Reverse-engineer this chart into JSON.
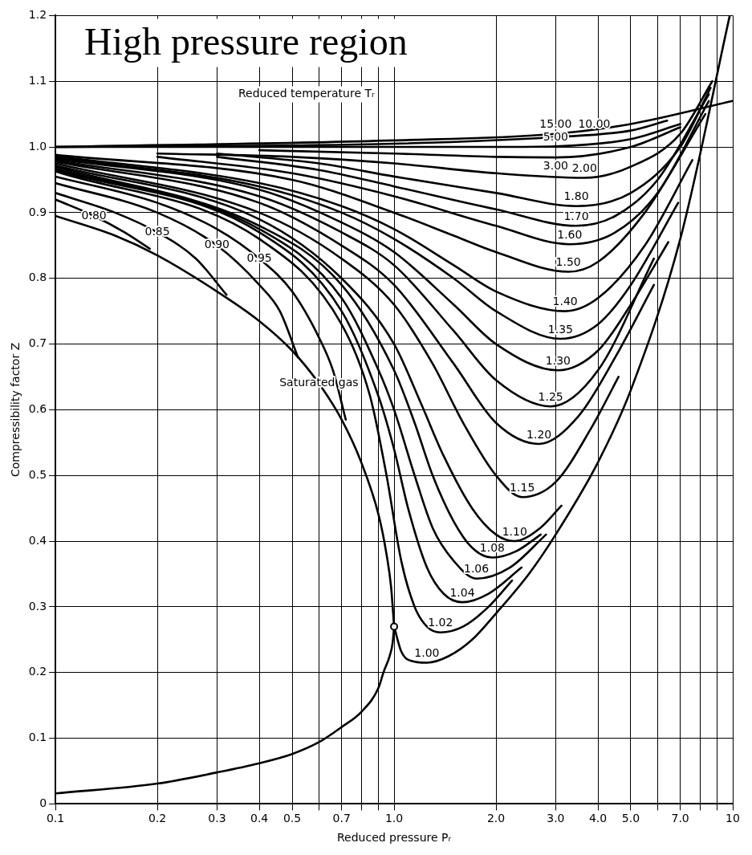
{
  "chart_data": {
    "type": "line",
    "title": "High pressure region",
    "xlabel": "Reduced pressure Pᵣ",
    "ylabel": "Compressibility factor Z",
    "annotations": [
      "Reduced temperature Tᵣ"
    ],
    "xlim": [
      0.1,
      10
    ],
    "ylim": [
      0,
      1.2
    ],
    "log": "x",
    "grid": true,
    "legend": false,
    "xticks": [
      0.1,
      0.2,
      0.3,
      0.4,
      0.5,
      {
        "value": 0.6,
        "label": null
      },
      0.7,
      {
        "value": 0.8,
        "label": null
      },
      {
        "value": 0.9,
        "label": null
      },
      {
        "value": 1,
        "label": "1.0"
      },
      {
        "value": 2,
        "label": "2.0"
      },
      {
        "value": 3,
        "label": "3.0"
      },
      {
        "value": 4,
        "label": "4.0"
      },
      {
        "value": 5,
        "label": "5.0"
      },
      {
        "value": 6,
        "label": null
      },
      {
        "value": 7,
        "label": "7.0"
      },
      {
        "value": 8,
        "label": null
      },
      {
        "value": 9,
        "label": null
      },
      10
    ],
    "yticks": [
      0,
      0.1,
      0.2,
      0.3,
      0.4,
      0.5,
      0.6,
      0.7,
      0.8,
      0.9,
      {
        "value": 1,
        "label": "1.0"
      },
      1.1,
      1.2
    ],
    "series": [
      {
        "name": "Saturated gas",
        "color": "#000000",
        "x": [
          0.1,
          0.15,
          0.2,
          0.3,
          0.4,
          0.5,
          0.6,
          0.7,
          0.8,
          0.9,
          0.95,
          0.98,
          1.0
        ],
        "values": [
          0.895,
          0.865,
          0.835,
          0.78,
          0.735,
          0.69,
          0.64,
          0.585,
          0.52,
          0.44,
          0.38,
          0.33,
          0.27
        ]
      },
      {
        "color": "#000000",
        "x": [
          0.1,
          0.2,
          0.3,
          0.4,
          0.5,
          0.6,
          0.7,
          0.8,
          0.9,
          0.93,
          0.97,
          0.99,
          1.0
        ],
        "values": [
          0.016,
          0.031,
          0.048,
          0.062,
          0.076,
          0.094,
          0.117,
          0.14,
          0.177,
          0.2,
          0.225,
          0.245,
          0.27
        ]
      },
      {
        "name": "0.80",
        "color": "#000000",
        "x": [
          0.1,
          0.13,
          0.16,
          0.19
        ],
        "values": [
          0.92,
          0.895,
          0.87,
          0.845
        ]
      },
      {
        "name": "0.85",
        "color": "#000000",
        "x": [
          0.1,
          0.15,
          0.2,
          0.26,
          0.32
        ],
        "values": [
          0.93,
          0.9,
          0.87,
          0.83,
          0.775
        ]
      },
      {
        "name": "0.90",
        "color": "#000000",
        "x": [
          0.1,
          0.2,
          0.3,
          0.4,
          0.46,
          0.52
        ],
        "values": [
          0.945,
          0.9,
          0.85,
          0.79,
          0.75,
          0.68
        ]
      },
      {
        "name": "0.95",
        "color": "#000000",
        "x": [
          0.1,
          0.2,
          0.3,
          0.4,
          0.5,
          0.6,
          0.66,
          0.72
        ],
        "values": [
          0.955,
          0.915,
          0.875,
          0.83,
          0.78,
          0.71,
          0.66,
          0.585
        ]
      },
      {
        "name": "1.00",
        "color": "#000000",
        "x": [
          1.0,
          1.05,
          1.12,
          1.25,
          1.45,
          1.7,
          2,
          2.5,
          3,
          4,
          5,
          7,
          9.8
        ],
        "values": [
          0.27,
          0.232,
          0.218,
          0.215,
          0.225,
          0.25,
          0.29,
          0.35,
          0.41,
          0.52,
          0.63,
          0.86,
          1.2
        ]
      },
      {
        "name": "1.02",
        "color": "#000000",
        "x": [
          0.1,
          0.4,
          0.7,
          0.85,
          0.95,
          1.05,
          1.15,
          1.25,
          1.37,
          1.6,
          1.9,
          2.23
        ],
        "values": [
          0.963,
          0.86,
          0.73,
          0.62,
          0.5,
          0.37,
          0.3,
          0.27,
          0.261,
          0.27,
          0.3,
          0.34
        ]
      },
      {
        "name": "1.04",
        "color": "#000000",
        "x": [
          0.1,
          0.4,
          0.7,
          0.9,
          1.0,
          1.1,
          1.25,
          1.4,
          1.59,
          1.9,
          2.38
        ],
        "values": [
          0.965,
          0.87,
          0.75,
          0.62,
          0.54,
          0.45,
          0.36,
          0.32,
          0.307,
          0.32,
          0.36
        ]
      },
      {
        "name": "1.06",
        "color": "#000000",
        "x": [
          0.1,
          0.4,
          0.7,
          0.9,
          1.0,
          1.15,
          1.3,
          1.5,
          1.75,
          2.2,
          2.81
        ],
        "values": [
          0.967,
          0.875,
          0.77,
          0.66,
          0.6,
          0.5,
          0.42,
          0.37,
          0.343,
          0.36,
          0.41
        ]
      },
      {
        "name": "1.08",
        "color": "#000000",
        "x": [
          0.1,
          0.4,
          0.7,
          1.0,
          1.15,
          1.3,
          1.5,
          1.7,
          1.95,
          2.3,
          2.71
        ],
        "values": [
          0.97,
          0.88,
          0.79,
          0.66,
          0.58,
          0.5,
          0.43,
          0.39,
          0.375,
          0.385,
          0.41
        ]
      },
      {
        "name": "1.10",
        "color": "#000000",
        "x": [
          0.1,
          0.4,
          0.7,
          1.0,
          1.2,
          1.4,
          1.7,
          2.0,
          2.27,
          2.7,
          3.12
        ],
        "values": [
          0.972,
          0.89,
          0.8,
          0.7,
          0.61,
          0.53,
          0.45,
          0.41,
          0.4,
          0.42,
          0.454
        ]
      },
      {
        "name": "1.15",
        "color": "#000000",
        "x": [
          0.1,
          0.4,
          0.7,
          1.0,
          1.3,
          1.6,
          2.0,
          2.39,
          3.0,
          3.8,
          4.6
        ],
        "values": [
          0.975,
          0.9,
          0.83,
          0.76,
          0.67,
          0.58,
          0.5,
          0.467,
          0.49,
          0.57,
          0.65
        ]
      },
      {
        "name": "1.20",
        "color": "#000000",
        "x": [
          0.1,
          0.4,
          0.7,
          1.0,
          1.5,
          2.0,
          2.68,
          3.5,
          4.5,
          5.85
        ],
        "values": [
          0.978,
          0.915,
          0.85,
          0.79,
          0.67,
          0.58,
          0.548,
          0.59,
          0.68,
          0.79
        ]
      },
      {
        "name": "1.25",
        "color": "#000000",
        "x": [
          0.1,
          0.4,
          0.7,
          1.0,
          1.5,
          2.0,
          2.9,
          4.0,
          5.85
        ],
        "values": [
          0.98,
          0.925,
          0.87,
          0.82,
          0.72,
          0.645,
          0.605,
          0.66,
          0.83
        ]
      },
      {
        "name": "1.30",
        "color": "#000000",
        "x": [
          0.1,
          0.4,
          0.7,
          1.0,
          1.5,
          2.0,
          3.05,
          4.0,
          5.0,
          6.45
        ],
        "values": [
          0.982,
          0.935,
          0.885,
          0.84,
          0.76,
          0.7,
          0.66,
          0.69,
          0.76,
          0.855
        ]
      },
      {
        "name": "1.35",
        "color": "#000000",
        "x": [
          0.1,
          0.4,
          0.7,
          1.0,
          1.5,
          2.0,
          3.1,
          4.0,
          5.0,
          6.9
        ],
        "values": [
          0.984,
          0.94,
          0.9,
          0.86,
          0.8,
          0.75,
          0.708,
          0.73,
          0.79,
          0.915
        ]
      },
      {
        "name": "1.40",
        "color": "#000000",
        "x": [
          0.1,
          0.4,
          0.7,
          1.0,
          1.5,
          2.0,
          3.2,
          4.0,
          5.5,
          7.6
        ],
        "values": [
          0.986,
          0.945,
          0.91,
          0.875,
          0.82,
          0.78,
          0.75,
          0.77,
          0.85,
          0.98
        ]
      },
      {
        "name": "1.50",
        "color": "#000000",
        "x": [
          0.1,
          0.5,
          1.0,
          1.5,
          2.0,
          3.27,
          4.0,
          5.5,
          8.3
        ],
        "values": [
          0.988,
          0.95,
          0.9,
          0.865,
          0.84,
          0.81,
          0.825,
          0.9,
          1.05
        ]
      },
      {
        "name": "1.60",
        "color": "#000000",
        "x": [
          0.2,
          0.5,
          1.0,
          2.0,
          3.3,
          4.5,
          6.0,
          8.5
        ],
        "values": [
          0.985,
          0.96,
          0.925,
          0.88,
          0.852,
          0.87,
          0.93,
          1.07
        ]
      },
      {
        "name": "1.70",
        "color": "#000000",
        "x": [
          0.3,
          0.6,
          1.0,
          2.0,
          3.45,
          4.5,
          6.0,
          8.5
        ],
        "values": [
          0.985,
          0.965,
          0.94,
          0.905,
          0.88,
          0.895,
          0.95,
          1.08
        ]
      },
      {
        "name": "1.80",
        "color": "#000000",
        "x": [
          0.3,
          0.6,
          1.0,
          2.0,
          3.45,
          5.0,
          7.0,
          8.6
        ],
        "values": [
          0.99,
          0.975,
          0.955,
          0.93,
          0.91,
          0.93,
          1.0,
          1.09
        ]
      },
      {
        "name": "2.00",
        "color": "#000000",
        "x": [
          0.2,
          0.5,
          1.0,
          2.0,
          3.65,
          5.0,
          7.0,
          8.7
        ],
        "values": [
          0.99,
          0.985,
          0.975,
          0.96,
          0.953,
          0.97,
          1.02,
          1.1
        ]
      },
      {
        "name": "3.00",
        "color": "#000000",
        "x": [
          0.4,
          1.0,
          2.0,
          3.0,
          5.0,
          7.0
        ],
        "values": [
          0.995,
          0.99,
          0.985,
          0.984,
          1.0,
          1.03
        ]
      },
      {
        "name": "5.00",
        "color": "#000000",
        "x": [
          0.1,
          1.0,
          2.0,
          3.0,
          5.0,
          7.0
        ],
        "values": [
          1.0,
          1.0,
          1.0,
          1.001,
          1.012,
          1.035
        ]
      },
      {
        "name": "10.00",
        "color": "#000000",
        "x": [
          0.1,
          1.0,
          3.0,
          5.0,
          6.4
        ],
        "values": [
          1.0,
          1.005,
          1.015,
          1.025,
          1.04
        ]
      },
      {
        "name": "15.00",
        "color": "#000000",
        "x": [
          0.1,
          1.0,
          3.0,
          5.0,
          10
        ],
        "values": [
          1.0,
          1.01,
          1.02,
          1.035,
          1.07
        ]
      },
      {
        "type": "scatter",
        "marker": "circle",
        "color": "#000000",
        "x": [
          1.0
        ],
        "values": [
          0.27
        ]
      }
    ]
  }
}
